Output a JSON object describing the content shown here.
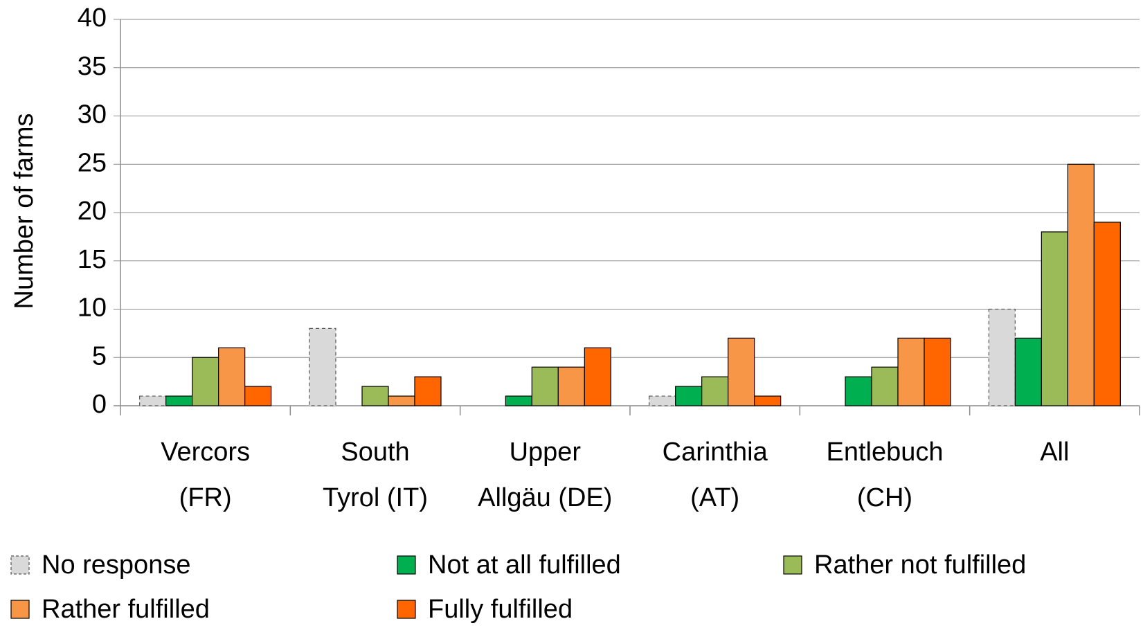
{
  "chart_data": {
    "type": "bar",
    "y_label": "Number of farms",
    "categories": [
      [
        "Vercors",
        "(FR)"
      ],
      [
        "South",
        "Tyrol (IT)"
      ],
      [
        "Upper",
        "Allgäu (DE)"
      ],
      [
        "Carinthia",
        "(AT)"
      ],
      [
        "Entlebuch",
        "(CH)"
      ],
      [
        "All"
      ]
    ],
    "series": [
      {
        "name": "No response",
        "color": "#d9d9d9",
        "line_style": "dashed",
        "values": [
          1,
          8,
          0,
          1,
          0,
          10
        ]
      },
      {
        "name": "Not at all fulfilled",
        "color": "#00b050",
        "values": [
          1,
          0,
          1,
          2,
          3,
          7
        ]
      },
      {
        "name": "Rather not fulfilled",
        "color": "#9bbb59",
        "values": [
          5,
          2,
          4,
          3,
          4,
          18
        ]
      },
      {
        "name": "Rather fulfilled",
        "color": "#f79646",
        "values": [
          6,
          1,
          4,
          7,
          7,
          25
        ]
      },
      {
        "name": "Fully fulfilled",
        "color": "#ff6600",
        "values": [
          2,
          3,
          6,
          1,
          7,
          19
        ]
      }
    ],
    "ylim": [
      0,
      40
    ],
    "yticks": [
      0,
      5,
      10,
      15,
      20,
      25,
      30,
      35,
      40
    ],
    "grid": true,
    "legend": "bottom"
  }
}
